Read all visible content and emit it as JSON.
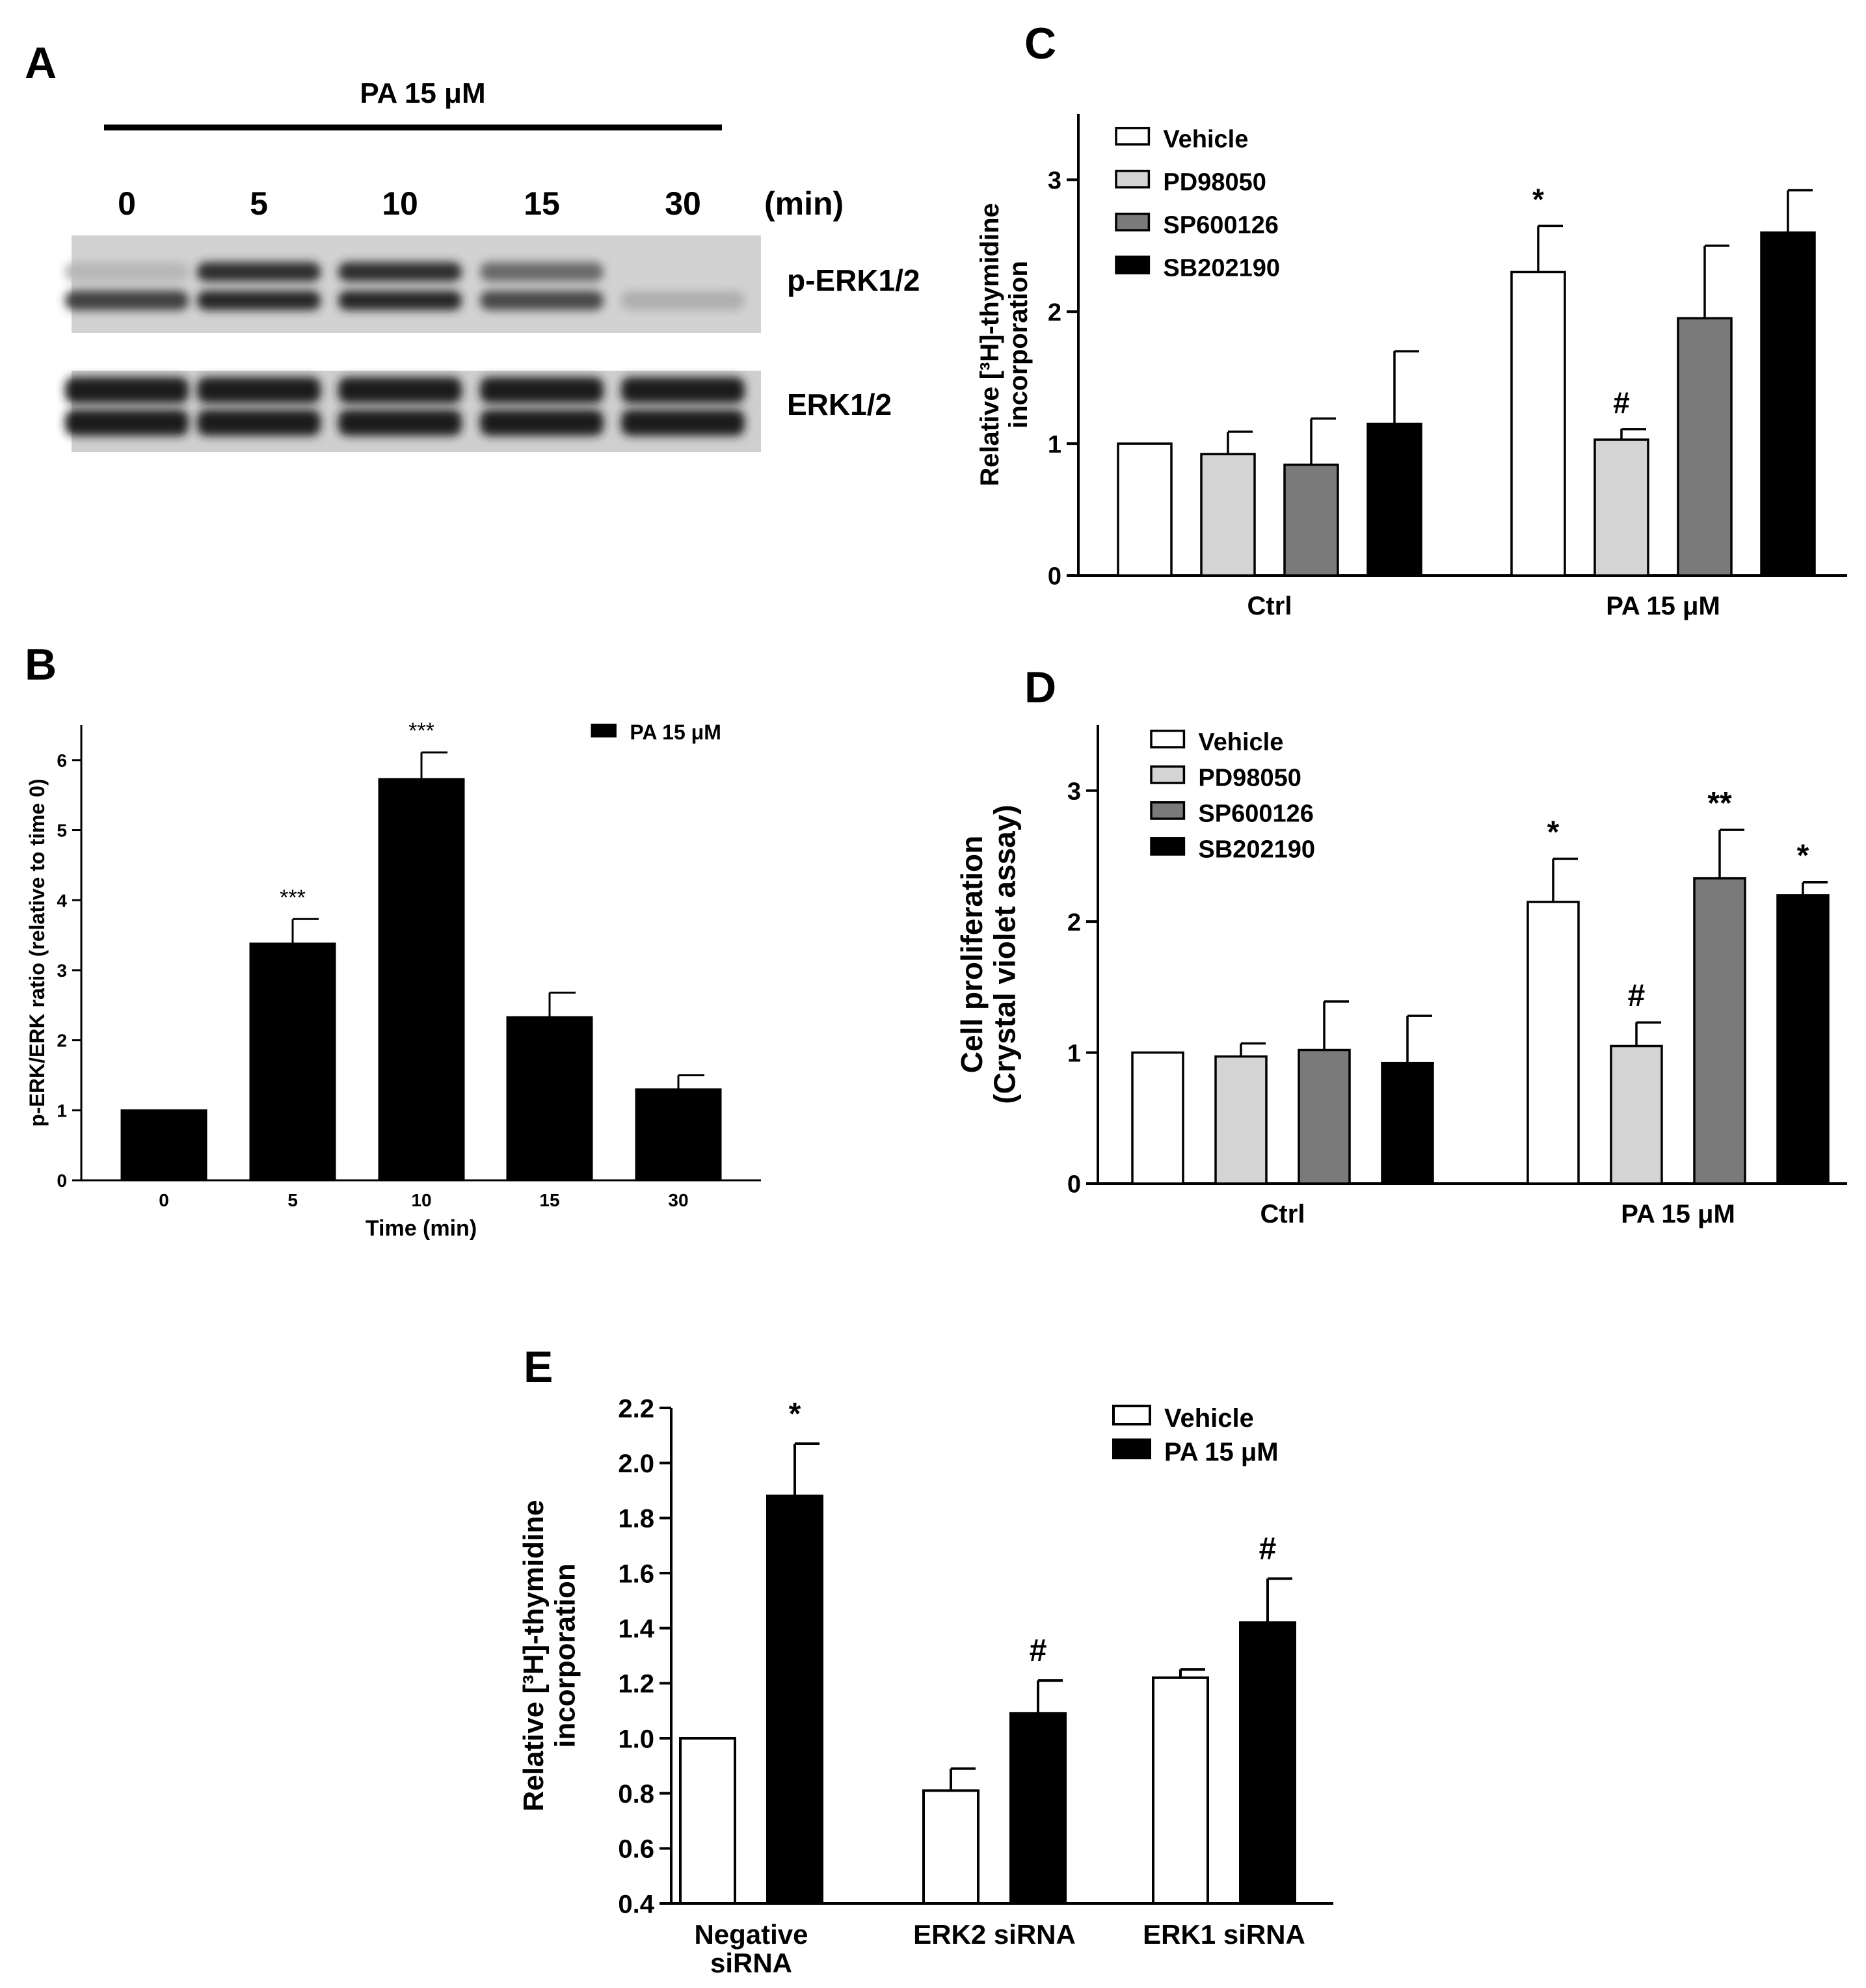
{
  "colors": {
    "white": "#ffffff",
    "light_gray": "#d4d4d4",
    "dark_gray": "#7a7a7a",
    "black": "#000000"
  },
  "panel_a": {
    "letter": "A",
    "treatment": "PA 15 μM",
    "time_label": "(min)",
    "times": [
      "0",
      "5",
      "10",
      "15",
      "30"
    ],
    "blots": [
      {
        "label": "p-ERK1/2",
        "upper_band": [
          0.1,
          0.9,
          0.9,
          0.55,
          0.0
        ],
        "lower_band": [
          0.8,
          0.95,
          0.95,
          0.75,
          0.15
        ]
      },
      {
        "label": "ERK1/2",
        "upper_band": [
          1,
          1,
          1,
          1,
          1
        ],
        "lower_band": [
          1,
          1,
          1,
          1,
          1
        ]
      }
    ]
  },
  "chart_data": [
    {
      "panel": "B",
      "type": "bar",
      "title": "",
      "xlabel": "Time (min)",
      "ylabel": "p-ERK/ERK ratio (relative to time 0)",
      "ylim": [
        0,
        6.5
      ],
      "yticks": [
        "0",
        "1",
        "2",
        "3",
        "4",
        "5",
        "6"
      ],
      "categories": [
        "0",
        "5",
        "10",
        "15",
        "30"
      ],
      "series": [
        {
          "name": "PA 15 μM",
          "color": "#000000",
          "values": [
            1.0,
            3.38,
            5.73,
            2.33,
            1.3
          ],
          "errors": [
            0,
            0.35,
            0.38,
            0.35,
            0.2
          ],
          "annotations": [
            "",
            "***",
            "***",
            "",
            ""
          ]
        }
      ],
      "legend": "top-right"
    },
    {
      "panel": "C",
      "type": "bar",
      "title": "",
      "xlabel": "",
      "ylabel_lines": [
        "Relative [³H]-thymidine",
        "incorporation"
      ],
      "ylim": [
        0,
        3.5
      ],
      "yticks": [
        "0",
        "1",
        "2",
        "3"
      ],
      "categories": [
        "Ctrl",
        "PA 15 μM"
      ],
      "series": [
        {
          "name": "Vehicle",
          "color": "#ffffff",
          "values": [
            1.0,
            2.3
          ],
          "errors": [
            0,
            0.35
          ],
          "annotations": [
            "",
            "*"
          ]
        },
        {
          "name": "PD98050",
          "color": "#d4d4d4",
          "values": [
            0.92,
            1.03
          ],
          "errors": [
            0.17,
            0.08
          ],
          "annotations": [
            "",
            "#"
          ]
        },
        {
          "name": "SP600126",
          "color": "#7a7a7a",
          "values": [
            0.84,
            1.95
          ],
          "errors": [
            0.35,
            0.55
          ],
          "annotations": [
            "",
            ""
          ]
        },
        {
          "name": "SB202190",
          "color": "#000000",
          "values": [
            1.15,
            2.6
          ],
          "errors": [
            0.55,
            0.32
          ],
          "annotations": [
            "",
            ""
          ]
        }
      ],
      "legend": "top-left"
    },
    {
      "panel": "D",
      "type": "bar",
      "title": "",
      "xlabel": "",
      "ylabel_lines": [
        "Cell proliferation",
        "(Crystal violet assay)"
      ],
      "ylim": [
        0,
        3.5
      ],
      "yticks": [
        "0",
        "1",
        "2",
        "3"
      ],
      "categories": [
        "Ctrl",
        "PA 15 μM"
      ],
      "series": [
        {
          "name": "Vehicle",
          "color": "#ffffff",
          "values": [
            1.0,
            2.15
          ],
          "errors": [
            0,
            0.33
          ],
          "annotations": [
            "",
            "*"
          ]
        },
        {
          "name": "PD98050",
          "color": "#d4d4d4",
          "values": [
            0.97,
            1.05
          ],
          "errors": [
            0.1,
            0.18
          ],
          "annotations": [
            "",
            "#"
          ]
        },
        {
          "name": "SP600126",
          "color": "#7a7a7a",
          "values": [
            1.02,
            2.33
          ],
          "errors": [
            0.37,
            0.37
          ],
          "annotations": [
            "",
            "**"
          ]
        },
        {
          "name": "SB202190",
          "color": "#000000",
          "values": [
            0.92,
            2.2
          ],
          "errors": [
            0.36,
            0.1
          ],
          "annotations": [
            "",
            "*"
          ]
        }
      ],
      "legend": "top-left"
    },
    {
      "panel": "E",
      "type": "bar",
      "title": "",
      "xlabel": "",
      "ylabel_lines": [
        "Relative [³H]-thymidine",
        "incorporation"
      ],
      "ylim": [
        0.4,
        2.2
      ],
      "yticks": [
        "0.4",
        "0.6",
        "0.8",
        "1.0",
        "1.2",
        "1.4",
        "1.6",
        "1.8",
        "2.0",
        "2.2"
      ],
      "categories": [
        "Negative\nsiRNA",
        "ERK2 siRNA",
        "ERK1 siRNA"
      ],
      "series": [
        {
          "name": "Vehicle",
          "color": "#ffffff",
          "values": [
            1.0,
            0.81,
            1.22
          ],
          "errors": [
            0,
            0.08,
            0.03
          ],
          "annotations": [
            "",
            "",
            ""
          ]
        },
        {
          "name": "PA 15 μM",
          "color": "#000000",
          "values": [
            1.88,
            1.09,
            1.42
          ],
          "errors": [
            0.19,
            0.12,
            0.16
          ],
          "annotations": [
            "*",
            "#",
            "#"
          ]
        }
      ],
      "legend": "top-right"
    }
  ]
}
